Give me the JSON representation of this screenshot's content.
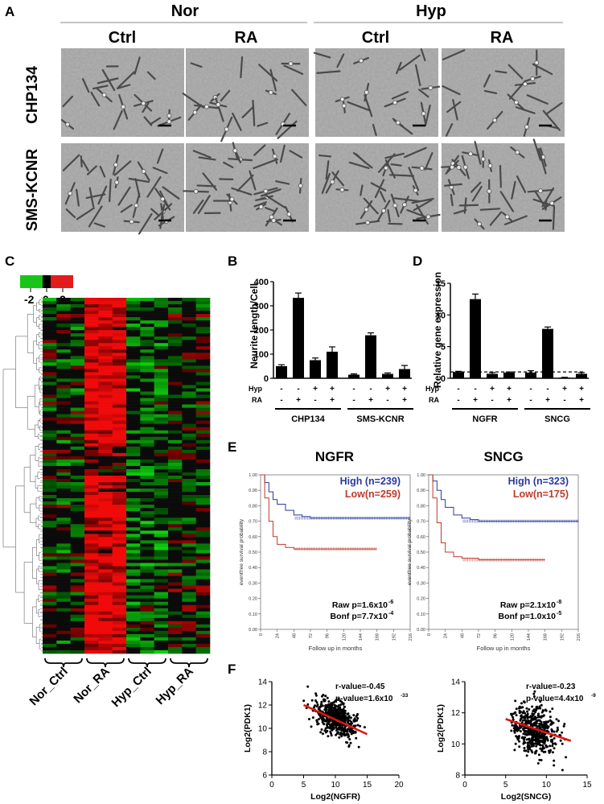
{
  "panelA": {
    "letter": "A",
    "groups": [
      "Nor",
      "Hyp"
    ],
    "columns": [
      "Ctrl",
      "RA",
      "Ctrl",
      "RA"
    ],
    "rows": [
      "CHP134",
      "SMS-KCNR"
    ]
  },
  "panelB": {
    "letter": "B",
    "ylabel": "Neurite length/Cell",
    "yticks": [
      "0",
      "100",
      "200",
      "300",
      "400"
    ],
    "factor_labels": [
      "Hyp",
      "RA"
    ],
    "hyp_signs": [
      "-",
      "-",
      "+",
      "+",
      "-",
      "-",
      "+",
      "+"
    ],
    "ra_signs": [
      "-",
      "+",
      "-",
      "+",
      "-",
      "+",
      "-",
      "+"
    ],
    "cell_lines": [
      "CHP134",
      "SMS-KCNR"
    ]
  },
  "panelC": {
    "letter": "C",
    "scale_labels": [
      "-2",
      "0",
      "2"
    ],
    "groups": [
      "Nor_Ctrl",
      "Nor_RA",
      "Hyp_Ctrl",
      "Hyp_RA"
    ],
    "colors": {
      "low": "#19c419",
      "mid": "#000000",
      "high": "#e21b1b"
    }
  },
  "panelD": {
    "letter": "D",
    "ylabel": "Relative gene expression",
    "yticks": [
      "0",
      "5",
      "10",
      "15"
    ],
    "factor_labels": [
      "Hyp",
      "RA"
    ],
    "hyp_signs": [
      "-",
      "-",
      "+",
      "+",
      "-",
      "-",
      "+",
      "+"
    ],
    "ra_signs": [
      "-",
      "+",
      "-",
      "+",
      "-",
      "+",
      "-",
      "+"
    ],
    "genes": [
      "NGFR",
      "SNCG"
    ]
  },
  "panelE": {
    "letter": "E",
    "plots": [
      {
        "title": "NGFR",
        "high": "High (n=239)",
        "low": "Low(n=259)",
        "raw": "Raw p=1.6x10",
        "raw_exp": "-6",
        "bonf": "Bonf p=7.7x10",
        "bonf_exp": "-4"
      },
      {
        "title": "SNCG",
        "high": "High (n=323)",
        "low": "Low(n=175)",
        "raw": "Raw p=2.1x10",
        "raw_exp": "-8",
        "bonf": "Bonf p=1.0x10",
        "bonf_exp": "-5"
      }
    ],
    "ylabel": "eventfree survival probability",
    "xlabel": "Follow up in months",
    "yticks": [
      "0.00",
      "0.10",
      "0.20",
      "0.30",
      "0.40",
      "0.50",
      "0.60",
      "0.70",
      "0.80",
      "0.90",
      "1.00"
    ],
    "xticks": [
      "0",
      "24",
      "48",
      "72",
      "96",
      "120",
      "144",
      "168",
      "192",
      "216"
    ],
    "colors": {
      "high": "#2a3a9b",
      "low": "#c0392b"
    }
  },
  "panelF": {
    "letter": "F",
    "plots": [
      {
        "xlabel": "Log2(NGFR)",
        "ylabel": "Log2(PDK1)",
        "r": "r-value=-0.45",
        "p": "p-value=1.6x10",
        "p_exp": "-33",
        "xticks": [
          "0",
          "5",
          "10",
          "15",
          "20"
        ],
        "yticks": [
          "6",
          "8",
          "10",
          "12",
          "14"
        ]
      },
      {
        "xlabel": "Log2(SNCG)",
        "ylabel": "Log2(PDK1)",
        "r": "r-value=-0.23",
        "p": "p-value=4.4x10",
        "p_exp": "-9",
        "xticks": [
          "0",
          "5",
          "10",
          "15"
        ],
        "yticks": [
          "8",
          "10",
          "12",
          "14"
        ]
      }
    ],
    "fit_color": "#e01515"
  },
  "chart_data": [
    {
      "type": "bar",
      "ylabel": "Neurite length/Cell",
      "ylim": [
        0,
        400
      ],
      "categories": [
        "CHP134 -/-",
        "CHP134 -/+",
        "CHP134 +/-",
        "CHP134 +/+",
        "SMS-KCNR -/-",
        "SMS-KCNR -/+",
        "SMS-KCNR +/-",
        "SMS-KCNR +/+"
      ],
      "values": [
        50,
        333,
        75,
        110,
        15,
        178,
        18,
        38
      ],
      "errors": [
        6,
        20,
        9,
        20,
        3,
        10,
        4,
        15
      ]
    },
    {
      "type": "bar",
      "ylabel": "Relative gene expression",
      "ylim": [
        0,
        15
      ],
      "categories": [
        "NGFR -/-",
        "NGFR -/+",
        "NGFR +/-",
        "NGFR +/+",
        "SNCG -/-",
        "SNCG -/+",
        "SNCG +/-",
        "SNCG +/+"
      ],
      "values": [
        1.0,
        12.5,
        0.7,
        0.9,
        0.9,
        7.8,
        0.1,
        0.7
      ],
      "errors": [
        0.1,
        0.8,
        0.2,
        0.1,
        0.3,
        0.3,
        0.05,
        0.2
      ],
      "reference_line": 1
    },
    {
      "type": "line",
      "title": "NGFR",
      "xlabel": "Follow up in months",
      "ylabel": "eventfree survival probability",
      "xlim": [
        0,
        216
      ],
      "ylim": [
        0,
        1
      ],
      "series": [
        {
          "name": "High (n=239)",
          "x": [
            0,
            6,
            12,
            18,
            24,
            36,
            48,
            60,
            72,
            120,
            168,
            216
          ],
          "y": [
            1.0,
            0.95,
            0.89,
            0.84,
            0.81,
            0.77,
            0.74,
            0.73,
            0.72,
            0.72,
            0.72,
            0.72
          ]
        },
        {
          "name": "Low(n=259)",
          "x": [
            0,
            6,
            12,
            18,
            24,
            36,
            48,
            72,
            120,
            168
          ],
          "y": [
            1.0,
            0.85,
            0.7,
            0.6,
            0.55,
            0.53,
            0.52,
            0.52,
            0.52,
            0.52
          ]
        }
      ]
    },
    {
      "type": "line",
      "title": "SNCG",
      "xlabel": "Follow up in months",
      "ylabel": "eventfree survival probability",
      "xlim": [
        0,
        216
      ],
      "ylim": [
        0,
        1
      ],
      "series": [
        {
          "name": "High (n=323)",
          "x": [
            0,
            6,
            12,
            18,
            24,
            36,
            48,
            60,
            72,
            120,
            168,
            216
          ],
          "y": [
            1.0,
            0.96,
            0.9,
            0.84,
            0.79,
            0.74,
            0.72,
            0.71,
            0.7,
            0.7,
            0.7,
            0.7
          ]
        },
        {
          "name": "Low(n=175)",
          "x": [
            0,
            6,
            12,
            18,
            24,
            36,
            48,
            72,
            120,
            168
          ],
          "y": [
            1.0,
            0.85,
            0.69,
            0.56,
            0.5,
            0.47,
            0.46,
            0.45,
            0.45,
            0.45
          ]
        }
      ]
    },
    {
      "type": "scatter",
      "xlabel": "Log2(NGFR)",
      "ylabel": "Log2(PDK1)",
      "xlim": [
        0,
        20
      ],
      "ylim": [
        6,
        14
      ],
      "fit_line": {
        "x": [
          5,
          15
        ],
        "y": [
          12.0,
          9.5
        ]
      }
    },
    {
      "type": "scatter",
      "xlabel": "Log2(SNCG)",
      "ylabel": "Log2(PDK1)",
      "xlim": [
        0,
        15
      ],
      "ylim": [
        8,
        14
      ],
      "fit_line": {
        "x": [
          5,
          13
        ],
        "y": [
          11.6,
          10.2
        ]
      }
    }
  ]
}
